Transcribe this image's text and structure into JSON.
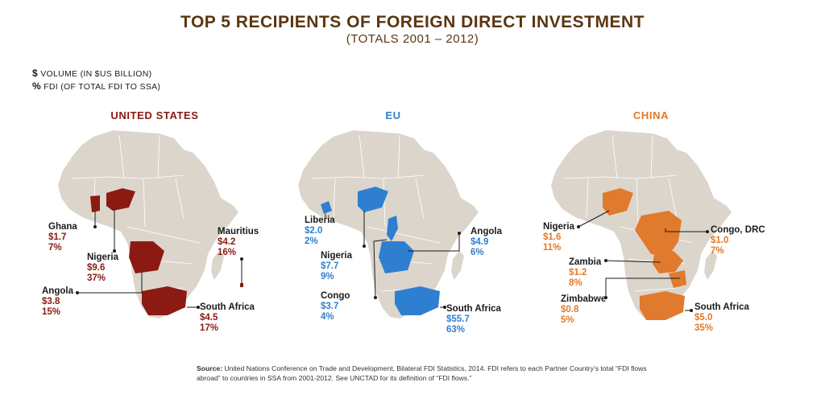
{
  "colors": {
    "title": "#5a3612",
    "us": "#8a1a12",
    "eu": "#2f7fd1",
    "china": "#e07a2c",
    "land": "#dcd5cc",
    "border": "#ffffff"
  },
  "title": "TOP 5 RECIPIENTS OF FOREIGN DIRECT INVESTMENT",
  "subtitle": "(TOTALS 2001 – 2012)",
  "legend": {
    "volume_symbol": "$",
    "volume_text": "VOLUME (IN $US BILLION)",
    "pct_symbol": "%",
    "pct_text": "FDI (OF TOTAL FDI TO SSA)"
  },
  "maps": {
    "us": {
      "title": "UNITED STATES",
      "items": [
        {
          "country": "Ghana",
          "value": "$1.7",
          "pct": "7%"
        },
        {
          "country": "Nigeria",
          "value": "$9.6",
          "pct": "37%"
        },
        {
          "country": "Angola",
          "value": "$3.8",
          "pct": "15%"
        },
        {
          "country": "Mauritius",
          "value": "$4.2",
          "pct": "16%"
        },
        {
          "country": "South Africa",
          "value": "$4.5",
          "pct": "17%"
        }
      ]
    },
    "eu": {
      "title": "EU",
      "items": [
        {
          "country": "Liberia",
          "value": "$2.0",
          "pct": "2%"
        },
        {
          "country": "Nigeria",
          "value": "$7.7",
          "pct": "9%"
        },
        {
          "country": "Congo",
          "value": "$3.7",
          "pct": "4%"
        },
        {
          "country": "Angola",
          "value": "$4.9",
          "pct": "6%"
        },
        {
          "country": "South Africa",
          "value": "$55.7",
          "pct": "63%"
        }
      ]
    },
    "china": {
      "title": "CHINA",
      "items": [
        {
          "country": "Nigeria",
          "value": "$1.6",
          "pct": "11%"
        },
        {
          "country": "Congo, DRC",
          "value": "$1.0",
          "pct": "7%"
        },
        {
          "country": "Zambia",
          "value": "$1.2",
          "pct": "8%"
        },
        {
          "country": "Zimbabwe",
          "value": "$0.8",
          "pct": "5%"
        },
        {
          "country": "South Africa",
          "value": "$5.0",
          "pct": "35%"
        }
      ]
    }
  },
  "source": {
    "label": "Source:",
    "text": "United Nations Conference on Trade and Development, Bilateral FDI Statistics, 2014. FDI refers to each Partner Country’s total “FDI flows abroad” to countries in SSA from 2001-2012. See UNCTAD for its definition of “FDI flows.”"
  }
}
